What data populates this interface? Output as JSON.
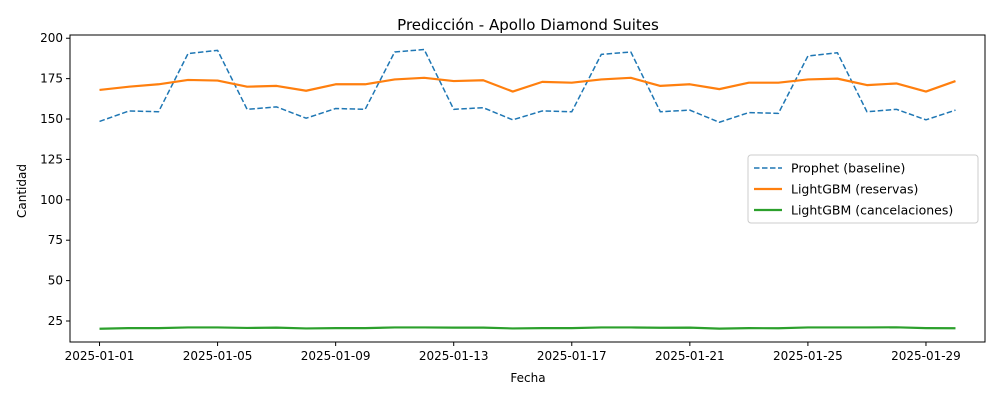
{
  "chart_data": {
    "type": "line",
    "title": "Predicción - Apollo Diamond Suites",
    "xlabel": "Fecha",
    "ylabel": "Cantidad",
    "x_start": "2025-01-01",
    "x_end": "2025-01-30",
    "xlim": [
      "2024-12-31",
      "2025-01-31"
    ],
    "ylim": [
      12,
      202
    ],
    "yticks": [
      25,
      50,
      75,
      100,
      125,
      150,
      175,
      200
    ],
    "xticks": [
      "2025-01-01",
      "2025-01-05",
      "2025-01-09",
      "2025-01-13",
      "2025-01-17",
      "2025-01-21",
      "2025-01-25",
      "2025-01-29"
    ],
    "grid": false,
    "legend_position": "center-right",
    "series": [
      {
        "name": "Prophet (baseline)",
        "color": "#1f77b4",
        "style": "dashed",
        "values": [
          148.5,
          155,
          154.5,
          190.5,
          192.5,
          156,
          157.5,
          150.5,
          156.5,
          156,
          191.5,
          193,
          156,
          157,
          149.5,
          155,
          154.5,
          190,
          191.5,
          154.5,
          155.5,
          148,
          154,
          153.5,
          189,
          191,
          154.5,
          156,
          149.5,
          155.5
        ]
      },
      {
        "name": "LightGBM (reservas)",
        "color": "#ff7f0e",
        "style": "solid",
        "values": [
          168,
          170,
          171.5,
          174.2,
          173.8,
          170,
          170.5,
          167.5,
          171.5,
          171.5,
          174.5,
          175.5,
          173.5,
          174,
          167,
          173,
          172.5,
          174.5,
          175.5,
          170.5,
          171.5,
          168.5,
          172.5,
          172.5,
          174.5,
          175,
          171,
          172,
          167,
          173.5
        ]
      },
      {
        "name": "LightGBM (cancelaciones)",
        "color": "#2ca02c",
        "style": "solid",
        "values": [
          20.2,
          20.6,
          20.6,
          21,
          21,
          20.7,
          20.9,
          20.4,
          20.6,
          20.6,
          21,
          21,
          20.9,
          20.9,
          20.4,
          20.6,
          20.6,
          21,
          21,
          20.8,
          20.9,
          20.3,
          20.6,
          20.5,
          21,
          21,
          21,
          21.1,
          20.6,
          20.5
        ]
      }
    ]
  }
}
